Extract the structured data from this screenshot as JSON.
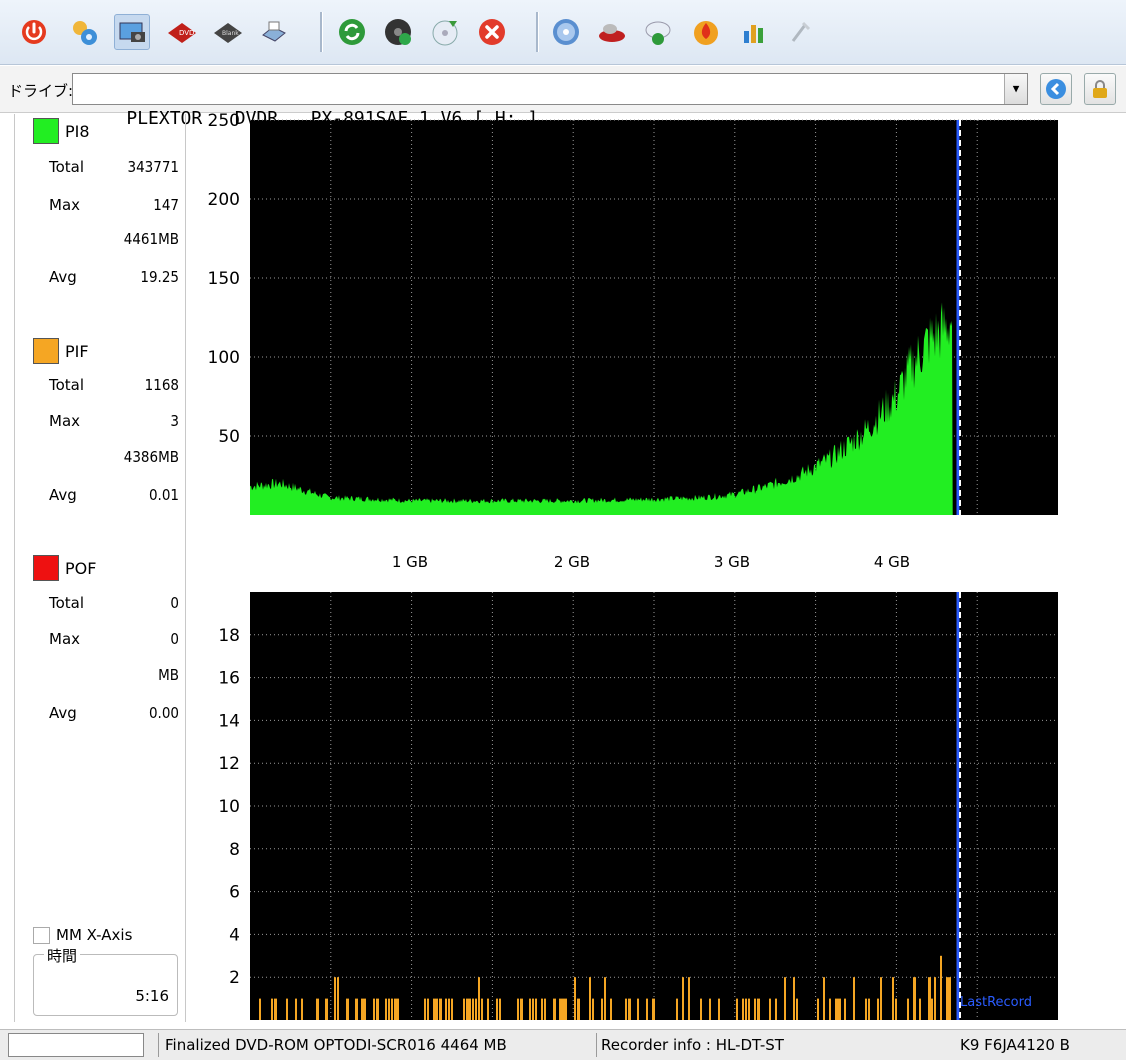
{
  "toolbar": {
    "icons": [
      "power-icon",
      "settings-icon",
      "screenshot-icon",
      "read-disc-icon",
      "write-disc-icon",
      "print-icon",
      "refresh-icon",
      "disc-info-icon",
      "eject-icon",
      "stop-icon",
      "disc-icon",
      "drive-icon",
      "save-icon",
      "burn-icon",
      "stats-icon",
      "tools-icon"
    ]
  },
  "drive": {
    "label": "ドライブ:",
    "selected": "PLEXTOR   DVDR   PX-891SAF 1.V6 [ H: ]"
  },
  "stats": {
    "pi8": {
      "name": "PI8",
      "color": "#22ee22",
      "total_label": "Total",
      "total": "343771",
      "max_label": "Max",
      "max": "147",
      "max_pos": "4461MB",
      "avg_label": "Avg",
      "avg": "19.25"
    },
    "pif": {
      "name": "PIF",
      "color": "#f5a623",
      "total_label": "Total",
      "total": "1168",
      "max_label": "Max",
      "max": "3",
      "max_pos": "4386MB",
      "avg_label": "Avg",
      "avg": "0.01"
    },
    "pof": {
      "name": "POF",
      "color": "#ee1111",
      "total_label": "Total",
      "total": "0",
      "max_label": "Max",
      "max": "0",
      "max_pos": "MB",
      "avg_label": "Avg",
      "avg": "0.00"
    },
    "mm_axis_label": "MM X-Axis",
    "time_title": "時間",
    "time_value": "5:16"
  },
  "chart_data": [
    {
      "type": "area",
      "series": [
        {
          "name": "PI8",
          "color": "#22ee22",
          "x": [
            0,
            0.2,
            0.5,
            0.8,
            1.0,
            1.5,
            2.0,
            2.5,
            2.8,
            3.0,
            3.2,
            3.4,
            3.6,
            3.8,
            4.0,
            4.1,
            4.2,
            4.3,
            4.35
          ],
          "values": [
            18,
            20,
            11,
            10,
            9,
            9,
            9,
            10,
            11,
            13,
            18,
            25,
            36,
            52,
            75,
            95,
            110,
            118,
            125
          ]
        }
      ],
      "x_ticks": [
        "1 GB",
        "2 GB",
        "3 GB",
        "4 GB"
      ],
      "y_ticks": [
        50,
        100,
        150,
        200,
        250
      ],
      "ylim": [
        0,
        250
      ],
      "xlim": [
        0,
        4.7
      ],
      "background": "#000000",
      "grid": true
    },
    {
      "type": "bar",
      "series": [
        {
          "name": "PIF",
          "color": "#f5a623",
          "approx_profile": "scattered spikes of 1-2 along the disc, up to 3 near 4.3 GB"
        }
      ],
      "x_ticks": [
        "1 GB",
        "2 GB",
        "3 GB",
        "4 GB"
      ],
      "y_ticks": [
        2,
        4,
        6,
        8,
        10,
        12,
        14,
        16,
        18
      ],
      "ylim": [
        0,
        20
      ],
      "xlim": [
        0,
        4.7
      ],
      "marker_label": "LastRecord",
      "background": "#000000",
      "grid": true
    }
  ],
  "status": {
    "cell1": "",
    "cell2": "Finalized  DVD-ROM  OPTODI-SCR016  4464 MB",
    "cell3": "Recorder info  : HL-DT-ST",
    "cell4": "K9 F6JA4120  B"
  }
}
